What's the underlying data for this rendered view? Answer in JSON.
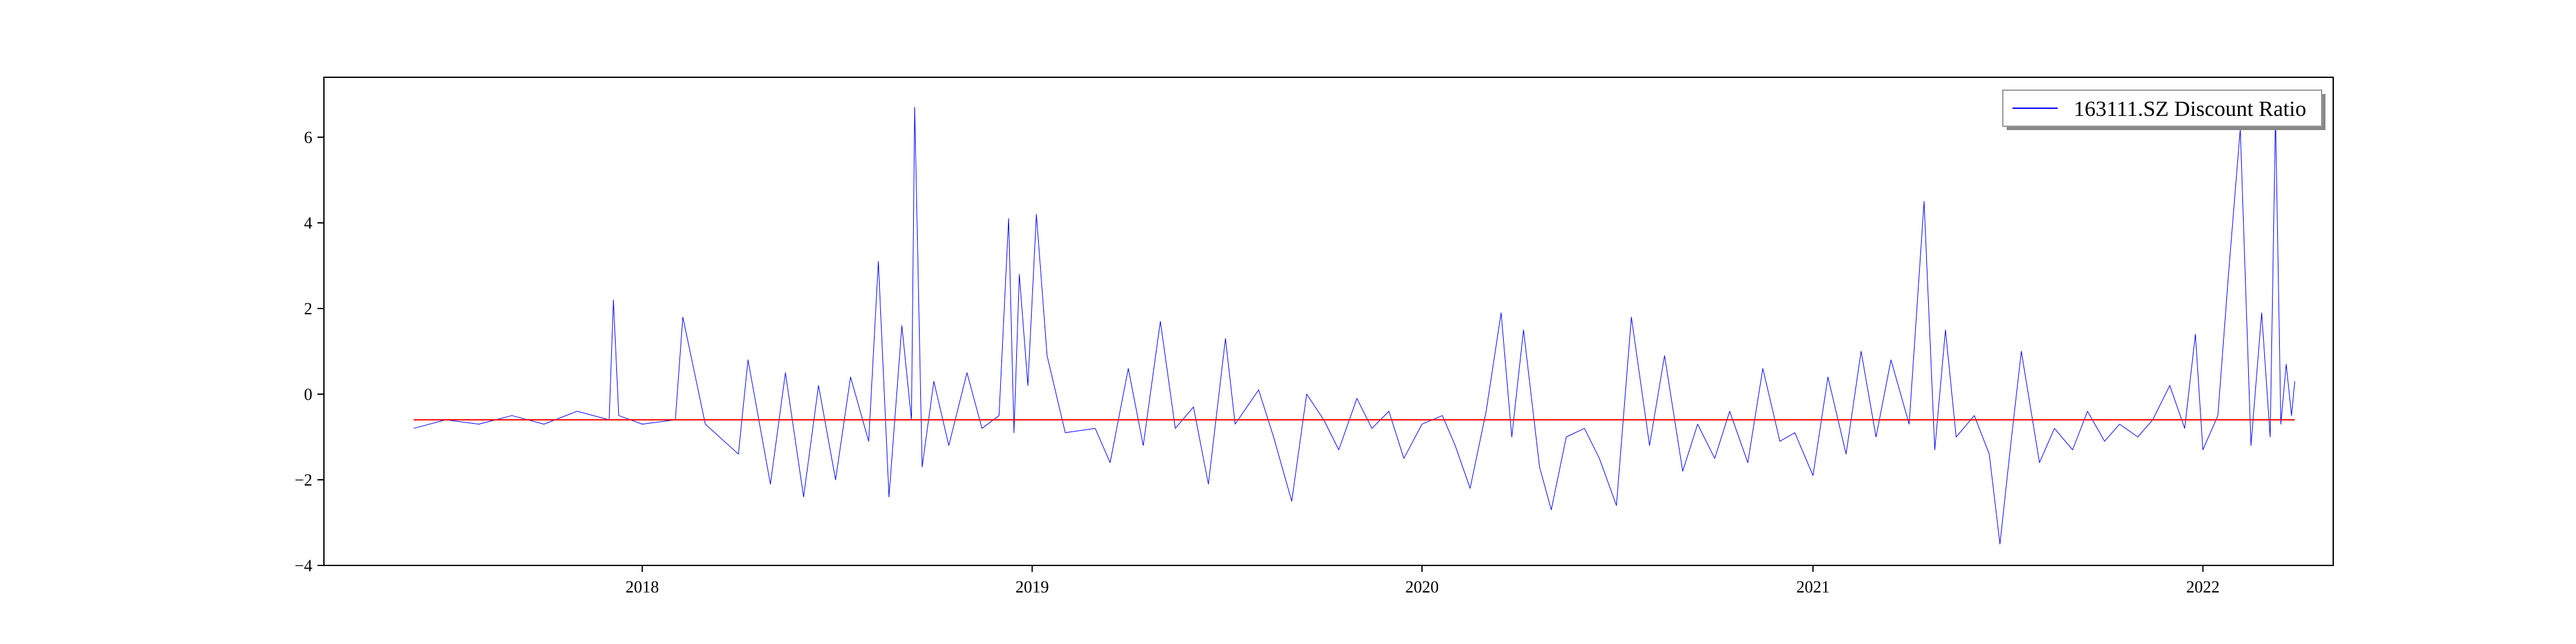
{
  "chart_data": {
    "type": "line",
    "title": "",
    "xlabel": "",
    "ylabel": "",
    "x_range": [
      "2017-03-09",
      "2022-05-03"
    ],
    "ylim": [
      -4,
      7.4
    ],
    "x_ticks": [
      {
        "date": "2018-01-01",
        "label": "2018"
      },
      {
        "date": "2019-01-01",
        "label": "2019"
      },
      {
        "date": "2020-01-01",
        "label": "2020"
      },
      {
        "date": "2021-01-01",
        "label": "2021"
      },
      {
        "date": "2022-01-01",
        "label": "2022"
      }
    ],
    "y_ticks": [
      -4,
      -2,
      0,
      2,
      4,
      6
    ],
    "grid": false,
    "legend_position": "top-right",
    "series": [
      {
        "name": "163111.SZ Discount Ratio",
        "color": "#0000ff",
        "x": [
          "2017-06-01",
          "2017-07-01",
          "2017-08-01",
          "2017-09-01",
          "2017-10-01",
          "2017-11-01",
          "2017-12-01",
          "2017-12-05",
          "2017-12-10",
          "2018-01-01",
          "2018-02-01",
          "2018-02-08",
          "2018-03-01",
          "2018-04-01",
          "2018-04-10",
          "2018-05-01",
          "2018-05-15",
          "2018-06-01",
          "2018-06-15",
          "2018-07-01",
          "2018-07-15",
          "2018-08-01",
          "2018-08-10",
          "2018-08-20",
          "2018-09-01",
          "2018-09-10",
          "2018-09-13",
          "2018-09-20",
          "2018-10-01",
          "2018-10-15",
          "2018-11-01",
          "2018-11-15",
          "2018-12-01",
          "2018-12-10",
          "2018-12-15",
          "2018-12-20",
          "2018-12-28",
          "2019-01-05",
          "2019-01-15",
          "2019-02-01",
          "2019-03-01",
          "2019-03-15",
          "2019-04-01",
          "2019-04-15",
          "2019-05-01",
          "2019-05-15",
          "2019-06-01",
          "2019-06-15",
          "2019-07-01",
          "2019-07-10",
          "2019-08-01",
          "2019-08-15",
          "2019-09-01",
          "2019-09-15",
          "2019-10-01",
          "2019-10-15",
          "2019-11-01",
          "2019-11-15",
          "2019-12-01",
          "2019-12-15",
          "2020-01-01",
          "2020-01-20",
          "2020-02-01",
          "2020-02-15",
          "2020-03-01",
          "2020-03-15",
          "2020-03-25",
          "2020-04-05",
          "2020-04-20",
          "2020-05-01",
          "2020-05-15",
          "2020-06-01",
          "2020-06-15",
          "2020-07-01",
          "2020-07-15",
          "2020-08-01",
          "2020-08-15",
          "2020-09-01",
          "2020-09-15",
          "2020-10-01",
          "2020-10-15",
          "2020-11-01",
          "2020-11-15",
          "2020-12-01",
          "2020-12-15",
          "2021-01-01",
          "2021-01-15",
          "2021-02-01",
          "2021-02-15",
          "2021-03-01",
          "2021-03-15",
          "2021-04-01",
          "2021-04-15",
          "2021-04-25",
          "2021-05-05",
          "2021-05-15",
          "2021-06-01",
          "2021-06-15",
          "2021-06-25",
          "2021-07-05",
          "2021-07-15",
          "2021-08-01",
          "2021-08-15",
          "2021-09-01",
          "2021-09-15",
          "2021-10-01",
          "2021-10-15",
          "2021-11-01",
          "2021-11-15",
          "2021-12-01",
          "2021-12-15",
          "2021-12-25",
          "2022-01-01",
          "2022-01-15",
          "2022-01-25",
          "2022-02-05",
          "2022-02-15",
          "2022-02-25",
          "2022-03-05",
          "2022-03-10",
          "2022-03-15",
          "2022-03-20",
          "2022-03-25",
          "2022-03-28"
        ],
        "values": [
          -0.8,
          -0.6,
          -0.7,
          -0.5,
          -0.7,
          -0.4,
          -0.6,
          2.2,
          -0.5,
          -0.7,
          -0.6,
          1.8,
          -0.7,
          -1.4,
          0.8,
          -2.1,
          0.5,
          -2.4,
          0.2,
          -2.0,
          0.4,
          -1.1,
          3.1,
          -2.4,
          1.6,
          -0.6,
          6.7,
          -1.7,
          0.3,
          -1.2,
          0.5,
          -0.8,
          -0.5,
          4.1,
          -0.9,
          2.8,
          0.2,
          4.2,
          0.9,
          -0.9,
          -0.8,
          -1.6,
          0.6,
          -1.2,
          1.7,
          -0.8,
          -0.3,
          -2.1,
          1.3,
          -0.7,
          0.1,
          -1.0,
          -2.5,
          0.0,
          -0.6,
          -1.3,
          -0.1,
          -0.8,
          -0.4,
          -1.5,
          -0.7,
          -0.5,
          -1.2,
          -2.2,
          -0.4,
          1.9,
          -1.0,
          1.5,
          -1.7,
          -2.7,
          -1.0,
          -0.8,
          -1.5,
          -2.6,
          1.8,
          -1.2,
          0.9,
          -1.8,
          -0.7,
          -1.5,
          -0.4,
          -1.6,
          0.6,
          -1.1,
          -0.9,
          -1.9,
          0.4,
          -1.4,
          1.0,
          -1.0,
          0.8,
          -0.7,
          4.5,
          -1.3,
          1.5,
          -1.0,
          -0.5,
          -1.4,
          -3.5,
          -1.2,
          1.0,
          -1.6,
          -0.8,
          -1.3,
          -0.4,
          -1.1,
          -0.7,
          -1.0,
          -0.6,
          0.2,
          -0.8,
          1.4,
          -1.3,
          -0.5,
          2.8,
          6.2,
          -1.2,
          1.9,
          -1.0,
          6.5,
          -0.7,
          0.7,
          -0.5,
          0.3
        ],
        "line_width": 1
      },
      {
        "name": "",
        "color": "#ff0000",
        "x": [
          "2017-06-01",
          "2022-03-28"
        ],
        "values": [
          -0.6,
          -0.6
        ],
        "line_width": 2
      }
    ]
  }
}
